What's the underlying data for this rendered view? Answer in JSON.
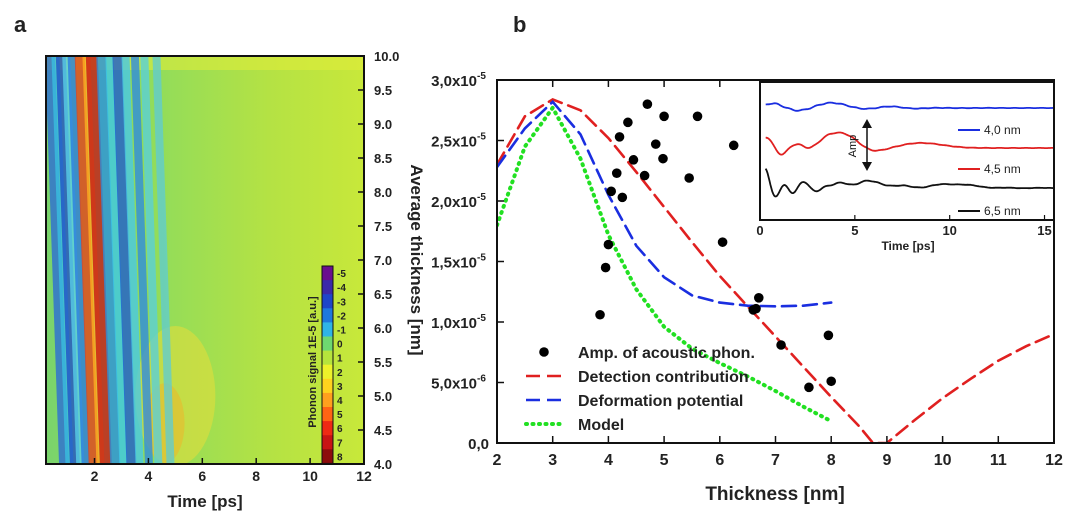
{
  "panel_labels": {
    "a": "a",
    "b": "b"
  },
  "chart_data": [
    {
      "type": "heatmap",
      "xlabel": "Time [ps]",
      "ylabel": "Average thickness [nm]",
      "xlim": [
        0.2,
        12
      ],
      "ylim": [
        4.0,
        10.0
      ],
      "xticks": [
        "2",
        "4",
        "6",
        "8",
        "10",
        "12"
      ],
      "yticks": [
        "4.0",
        "4.5",
        "5.0",
        "5.5",
        "6.0",
        "6.5",
        "7.0",
        "7.5",
        "8.0",
        "8.5",
        "9.0",
        "9.5",
        "10.0"
      ],
      "colorbar": {
        "label": "Phonon signal 1E-5 [a.u.]",
        "ticks": [
          "-5",
          "-4",
          "-3",
          "-2",
          "-1",
          "0",
          "1",
          "2",
          "3",
          "4",
          "5",
          "6",
          "7",
          "8"
        ],
        "colors": [
          "#6a0f8e",
          "#3b2aa8",
          "#1e46c8",
          "#1e78dc",
          "#2fb4e6",
          "#6ed870",
          "#b6e43c",
          "#eef22a",
          "#ffd21e",
          "#ffa01e",
          "#ff6414",
          "#ee2a14",
          "#c81414",
          "#8c0c0c"
        ]
      }
    },
    {
      "type": "scatter+line",
      "xlabel": "Thickness [nm]",
      "ylabel": "",
      "xlim": [
        2,
        12
      ],
      "ylim": [
        0,
        3e-05
      ],
      "xticks": [
        "2",
        "3",
        "4",
        "5",
        "6",
        "7",
        "8",
        "9",
        "10",
        "11",
        "12"
      ],
      "yticks": [
        {
          "value": 0,
          "label": "0,0",
          "exp": ""
        },
        {
          "value": 5e-06,
          "label": "5,0x10",
          "exp": "-6"
        },
        {
          "value": 1e-05,
          "label": "1,0x10",
          "exp": "-5"
        },
        {
          "value": 1.5e-05,
          "label": "1,5x10",
          "exp": "-5"
        },
        {
          "value": 2e-05,
          "label": "2,0x10",
          "exp": "-5"
        },
        {
          "value": 2.5e-05,
          "label": "2,5x10",
          "exp": "-5"
        },
        {
          "value": 3e-05,
          "label": "3,0x10",
          "exp": "-5"
        }
      ],
      "legend_position": "bottom-left",
      "series": [
        {
          "name": "Amp. of acoustic phon.",
          "style": "dots",
          "color": "#000000",
          "points": [
            [
              3.85,
              1.06e-05
            ],
            [
              3.95,
              1.45e-05
            ],
            [
              4.0,
              1.64e-05
            ],
            [
              4.05,
              2.08e-05
            ],
            [
              4.15,
              2.23e-05
            ],
            [
              4.2,
              2.53e-05
            ],
            [
              4.25,
              2.03e-05
            ],
            [
              4.35,
              2.65e-05
            ],
            [
              4.45,
              2.34e-05
            ],
            [
              4.65,
              2.21e-05
            ],
            [
              4.7,
              2.8e-05
            ],
            [
              4.85,
              2.47e-05
            ],
            [
              4.98,
              2.35e-05
            ],
            [
              5.0,
              2.7e-05
            ],
            [
              5.45,
              2.19e-05
            ],
            [
              5.6,
              2.7e-05
            ],
            [
              6.05,
              1.66e-05
            ],
            [
              6.25,
              2.46e-05
            ],
            [
              6.6,
              1.1e-05
            ],
            [
              6.65,
              1.11e-05
            ],
            [
              6.7,
              1.2e-05
            ],
            [
              7.1,
              8.1e-06
            ],
            [
              7.6,
              4.6e-06
            ],
            [
              7.95,
              8.9e-06
            ],
            [
              8.0,
              5.1e-06
            ]
          ]
        },
        {
          "name": "Detection contribution",
          "style": "dash",
          "color": "#e02020",
          "points": [
            [
              2,
              2.3e-05
            ],
            [
              2.5,
              2.7e-05
            ],
            [
              3.0,
              2.84e-05
            ],
            [
              3.5,
              2.75e-05
            ],
            [
              4.0,
              2.52e-05
            ],
            [
              4.5,
              2.24e-05
            ],
            [
              5.0,
              1.95e-05
            ],
            [
              5.5,
              1.66e-05
            ],
            [
              6.0,
              1.38e-05
            ],
            [
              6.5,
              1.13e-05
            ],
            [
              7.0,
              8.8e-06
            ],
            [
              7.5,
              6.3e-06
            ],
            [
              8.0,
              3.8e-06
            ],
            [
              8.5,
              1.4e-06
            ],
            [
              8.75,
              0
            ],
            [
              9.0,
              0
            ],
            [
              9.5,
              1.9e-06
            ],
            [
              10.0,
              3.7e-06
            ],
            [
              10.5,
              5.3e-06
            ],
            [
              11.0,
              6.8e-06
            ],
            [
              11.5,
              8e-06
            ],
            [
              12.0,
              9e-06
            ]
          ]
        },
        {
          "name": "Deformation potential",
          "style": "dash",
          "color": "#1a2ee0",
          "points": [
            [
              2,
              2.28e-05
            ],
            [
              2.5,
              2.6e-05
            ],
            [
              3.0,
              2.82e-05
            ],
            [
              3.5,
              2.55e-05
            ],
            [
              4.0,
              2.05e-05
            ],
            [
              4.5,
              1.63e-05
            ],
            [
              5.0,
              1.37e-05
            ],
            [
              5.5,
              1.22e-05
            ],
            [
              6.0,
              1.16e-05
            ],
            [
              6.5,
              1.135e-05
            ],
            [
              7.0,
              1.13e-05
            ],
            [
              7.5,
              1.135e-05
            ],
            [
              8.0,
              1.16e-05
            ]
          ]
        },
        {
          "name": "Model",
          "style": "dot",
          "color": "#22e022",
          "points": [
            [
              2,
              1.8e-05
            ],
            [
              2.5,
              2.45e-05
            ],
            [
              3.0,
              2.77e-05
            ],
            [
              3.5,
              2.35e-05
            ],
            [
              4.0,
              1.72e-05
            ],
            [
              4.5,
              1.27e-05
            ],
            [
              5.0,
              9.6e-06
            ],
            [
              5.5,
              7.8e-06
            ],
            [
              6.0,
              6.6e-06
            ],
            [
              6.5,
              5.5e-06
            ],
            [
              7.0,
              4.3e-06
            ],
            [
              7.5,
              3e-06
            ],
            [
              8.0,
              1.8e-06
            ]
          ]
        }
      ]
    },
    {
      "type": "line",
      "inset": true,
      "xlabel": "Time [ps]",
      "xlim": [
        0,
        15.5
      ],
      "xticks": [
        "0",
        "5",
        "10",
        "15"
      ],
      "annotation": "Amp",
      "series": [
        {
          "name": "4,0 nm",
          "color": "#1a2ee0"
        },
        {
          "name": "4,5 nm",
          "color": "#e02020"
        },
        {
          "name": "6,5 nm",
          "color": "#111111"
        }
      ]
    }
  ]
}
